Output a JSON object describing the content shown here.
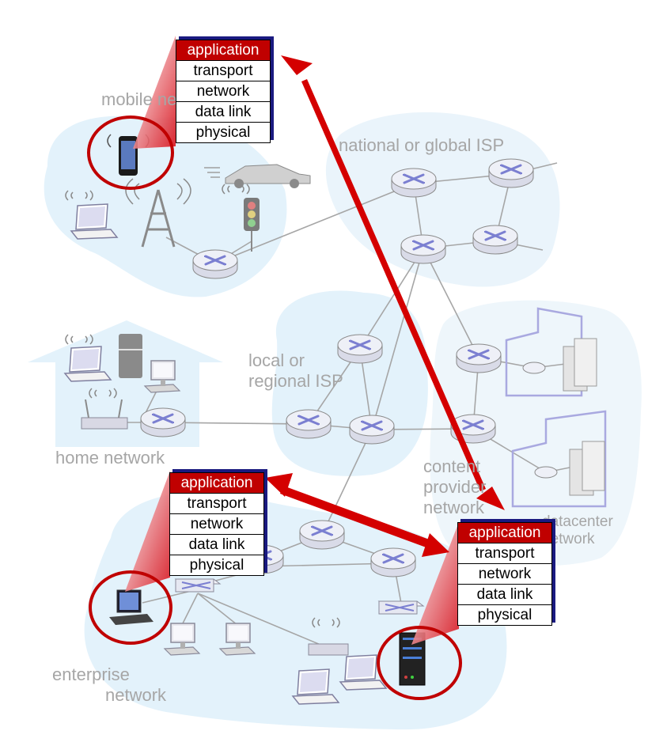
{
  "regions": {
    "mobile": "mobile network",
    "national": "national or global ISP",
    "local_line1": "local or",
    "local_line2": "regional ISP",
    "home": "home network",
    "content_line1": "content",
    "content_line2": "provider",
    "content_line3": "network",
    "datacenter_line1": "datacenter",
    "datacenter_line2": "network",
    "enterprise_line1": "enterprise",
    "enterprise_line2": "network"
  },
  "protocol_stack": {
    "layers": [
      "application",
      "transport",
      "network",
      "data link",
      "physical"
    ]
  },
  "colors": {
    "cloud": "#e3f2fb",
    "router_fill": "#e8eaf4",
    "router_x": "#7b7fd1",
    "arrow": "#d40000",
    "highlight_circle": "#c00000",
    "link": "#a6a6a6",
    "label": "#a6a6a6"
  }
}
